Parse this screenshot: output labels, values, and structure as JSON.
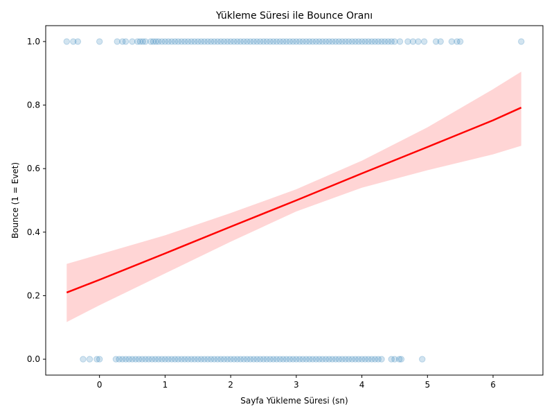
{
  "chart_data": {
    "type": "scatter",
    "title": "Yükleme Süresi ile Bounce Oranı",
    "xlabel": "Sayfa Yükleme Süresi (sn)",
    "ylabel": "Bounce (1 = Evet)",
    "xlim": [
      -0.82,
      6.76
    ],
    "ylim": [
      -0.05,
      1.05
    ],
    "xticks": [
      0,
      1,
      2,
      3,
      4,
      5,
      6
    ],
    "yticks": [
      0.0,
      0.2,
      0.4,
      0.6,
      0.8,
      1.0
    ],
    "xtick_labels": [
      "0",
      "1",
      "2",
      "3",
      "4",
      "5",
      "6"
    ],
    "ytick_labels": [
      "0.0",
      "0.2",
      "0.4",
      "0.6",
      "0.8",
      "1.0"
    ],
    "grid": false,
    "colors": {
      "points": "#1f77b4",
      "fit_line": "#ff0000",
      "confidence_band": "#ffb3b3"
    },
    "series": [
      {
        "values_y": 1,
        "x": [
          -0.5,
          -0.4,
          -0.33,
          0.0,
          0.27,
          0.35,
          0.4,
          0.5,
          0.58,
          0.62,
          0.66,
          0.7,
          0.78,
          0.82,
          0.86,
          0.9,
          0.95,
          1.0,
          1.05,
          1.1,
          1.15,
          1.2,
          1.25,
          1.3,
          1.35,
          1.4,
          1.45,
          1.5,
          1.55,
          1.6,
          1.65,
          1.7,
          1.75,
          1.8,
          1.85,
          1.9,
          1.95,
          2.0,
          2.05,
          2.1,
          2.15,
          2.2,
          2.25,
          2.3,
          2.35,
          2.4,
          2.45,
          2.5,
          2.55,
          2.6,
          2.65,
          2.7,
          2.75,
          2.8,
          2.85,
          2.9,
          2.95,
          3.0,
          3.05,
          3.1,
          3.15,
          3.2,
          3.25,
          3.3,
          3.35,
          3.4,
          3.45,
          3.5,
          3.55,
          3.6,
          3.65,
          3.7,
          3.75,
          3.8,
          3.85,
          3.9,
          3.95,
          4.0,
          4.05,
          4.1,
          4.15,
          4.2,
          4.25,
          4.3,
          4.35,
          4.4,
          4.45,
          4.5,
          4.58,
          4.7,
          4.78,
          4.86,
          4.95,
          5.13,
          5.2,
          5.37,
          5.45,
          5.5,
          6.43
        ]
      },
      {
        "values_y": 0,
        "x": [
          -0.25,
          -0.15,
          -0.04,
          0.0,
          0.25,
          0.3,
          0.35,
          0.4,
          0.45,
          0.5,
          0.55,
          0.6,
          0.65,
          0.7,
          0.75,
          0.8,
          0.85,
          0.9,
          0.95,
          1.0,
          1.05,
          1.1,
          1.15,
          1.2,
          1.25,
          1.3,
          1.35,
          1.4,
          1.45,
          1.5,
          1.55,
          1.6,
          1.65,
          1.7,
          1.75,
          1.8,
          1.85,
          1.9,
          1.95,
          2.0,
          2.05,
          2.1,
          2.15,
          2.2,
          2.25,
          2.3,
          2.35,
          2.4,
          2.45,
          2.5,
          2.55,
          2.6,
          2.65,
          2.7,
          2.75,
          2.8,
          2.85,
          2.9,
          2.95,
          3.0,
          3.05,
          3.1,
          3.15,
          3.2,
          3.25,
          3.3,
          3.35,
          3.4,
          3.45,
          3.5,
          3.55,
          3.6,
          3.65,
          3.7,
          3.75,
          3.8,
          3.85,
          3.9,
          3.95,
          4.0,
          4.05,
          4.1,
          4.15,
          4.2,
          4.25,
          4.3,
          4.45,
          4.5,
          4.57,
          4.6,
          4.92
        ]
      }
    ],
    "fit": {
      "x": [
        -0.5,
        0.0,
        1.0,
        2.0,
        3.0,
        4.0,
        5.0,
        6.0,
        6.43
      ],
      "y": [
        0.21,
        0.25,
        0.333,
        0.417,
        0.5,
        0.585,
        0.668,
        0.752,
        0.792
      ],
      "lower": [
        0.117,
        0.17,
        0.27,
        0.37,
        0.465,
        0.54,
        0.595,
        0.645,
        0.672
      ],
      "upper": [
        0.3,
        0.33,
        0.39,
        0.46,
        0.535,
        0.625,
        0.73,
        0.85,
        0.905
      ]
    }
  }
}
